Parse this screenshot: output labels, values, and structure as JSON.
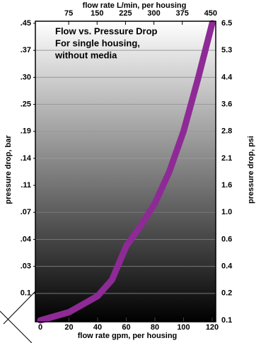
{
  "chart_data": {
    "type": "line",
    "title": [
      "Flow vs. Pressure Drop",
      "For single housing,",
      "without media"
    ],
    "xlabel": "flow rate gpm, per housing",
    "x2label": "flow rate L/min, per housing",
    "ylabel": "pressure drop, bar",
    "y2label": "pressure drop, psi",
    "x": [
      0,
      20,
      40,
      50,
      60,
      70,
      80,
      90,
      100,
      110,
      120
    ],
    "series": [
      {
        "name": "pressure drop",
        "color": "#8e2a96",
        "axis": "y2",
        "values": [
          0.1,
          0.13,
          0.19,
          0.3,
          0.55,
          0.8,
          1.2,
          1.85,
          2.8,
          4.35,
          6.5
        ]
      }
    ],
    "xlim": [
      0,
      120
    ],
    "xticks": [
      0,
      20,
      40,
      60,
      80,
      100,
      120
    ],
    "x2lim": [
      0,
      454
    ],
    "x2ticks": [
      75,
      150,
      225,
      300,
      375,
      450
    ],
    "yticks": [
      0.1,
      {
        "value": 0.03,
        "label": ".03"
      },
      {
        "value": 0.04,
        "label": ".04"
      },
      {
        "value": 0.07,
        "label": ".07"
      },
      {
        "value": 0.11,
        "label": ".11"
      },
      {
        "value": 0.14,
        "label": ".14"
      },
      {
        "value": 0.19,
        "label": ".19"
      },
      {
        "value": 0.25,
        "label": ".25"
      },
      {
        "value": 0.3,
        "label": ".30"
      },
      {
        "value": 0.37,
        "label": ".37"
      },
      {
        "value": 0.45,
        "label": ".45"
      }
    ],
    "y2lim": [
      0.1,
      6.5
    ],
    "y2ticks": [
      0.1,
      0.2,
      0.4,
      0.6,
      {
        "value": 1.0,
        "label": "1.0"
      },
      1.6,
      2.1,
      2.8,
      3.6,
      4.4,
      5.3,
      6.5
    ],
    "grid": true
  }
}
